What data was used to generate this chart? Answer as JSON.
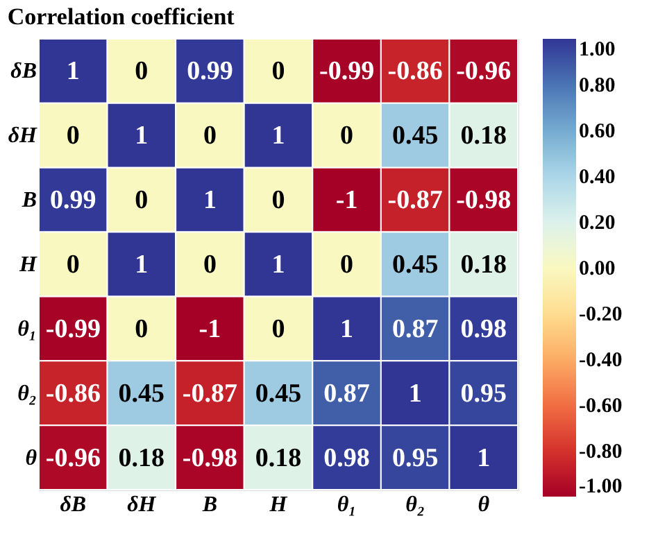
{
  "chart_data": {
    "type": "heatmap",
    "title": "Correlation coefficient",
    "categories": [
      "δB",
      "δH",
      "B",
      "H",
      "θ₁",
      "θ₂",
      "θ"
    ],
    "y_categories": [
      "δB",
      "δH",
      "B",
      "H",
      "θ₁",
      "θ₂",
      "θ"
    ],
    "cells": [
      [
        1,
        0,
        0.99,
        0,
        -0.99,
        -0.86,
        -0.96
      ],
      [
        0,
        1,
        0,
        1,
        0,
        0.45,
        0.18
      ],
      [
        0.99,
        0,
        1,
        0,
        -1,
        -0.87,
        -0.98
      ],
      [
        0,
        1,
        0,
        1,
        0,
        0.45,
        0.18
      ],
      [
        -0.99,
        0,
        -1,
        0,
        1,
        0.87,
        0.98
      ],
      [
        -0.86,
        0.45,
        -0.87,
        0.45,
        0.87,
        1,
        0.95
      ],
      [
        -0.96,
        0.18,
        -0.98,
        0.18,
        0.98,
        0.95,
        1
      ]
    ],
    "clim": [
      -1,
      1
    ],
    "cticks": [
      {
        "value": 1,
        "label": "1.00"
      },
      {
        "value": 0.8,
        "label": "0.80"
      },
      {
        "value": 0.6,
        "label": "0.60"
      },
      {
        "value": 0.4,
        "label": "0.40"
      },
      {
        "value": 0.2,
        "label": "0.20"
      },
      {
        "value": 0,
        "label": "0.00"
      },
      {
        "value": -0.2,
        "label": "-0.20"
      },
      {
        "value": -0.4,
        "label": "-0.40"
      },
      {
        "value": -0.6,
        "label": "-0.60"
      },
      {
        "value": -0.8,
        "label": "-0.80"
      },
      {
        "value": -1,
        "label": "-1.00"
      }
    ],
    "data_labels": true
  }
}
